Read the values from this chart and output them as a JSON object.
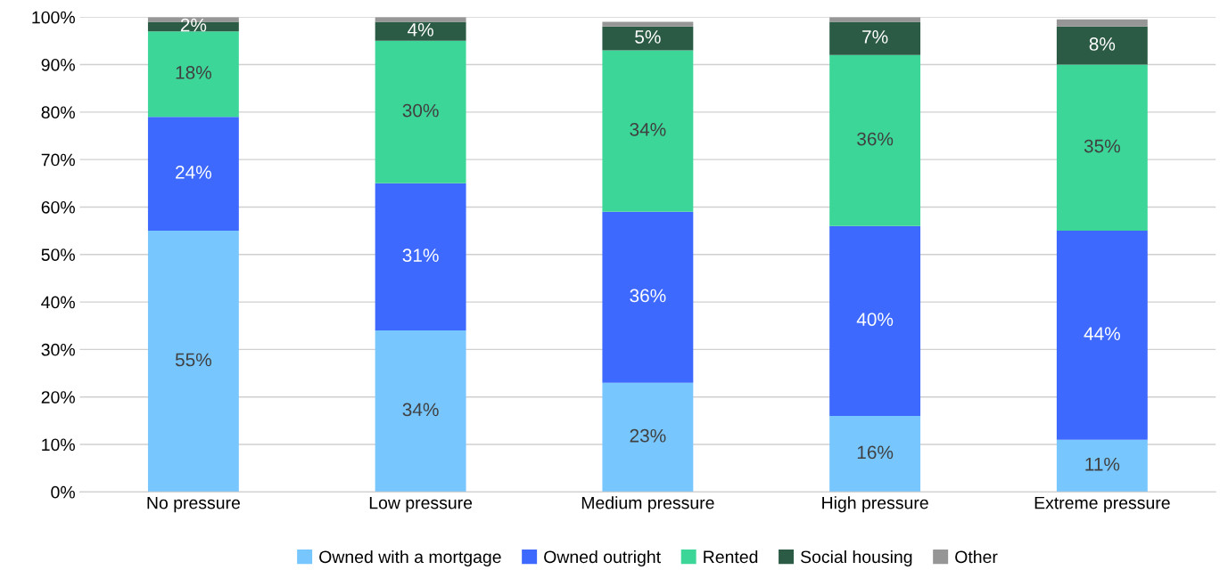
{
  "chart_data": {
    "type": "bar",
    "stacked": true,
    "categories": [
      "No pressure",
      "Low pressure",
      "Medium pressure",
      "High pressure",
      "Extreme pressure"
    ],
    "series": [
      {
        "name": "Owned with a mortgage",
        "color": "#77c6fe",
        "values": [
          55,
          34,
          23,
          16,
          11
        ],
        "value_labels": [
          "55%",
          "34%",
          "23%",
          "16%",
          "11%"
        ]
      },
      {
        "name": "Owned outright",
        "color": "#3d69fe",
        "values": [
          24,
          31,
          36,
          40,
          44
        ],
        "value_labels": [
          "24%",
          "31%",
          "36%",
          "40%",
          "44%"
        ]
      },
      {
        "name": "Rented",
        "color": "#3dd699",
        "values": [
          18,
          30,
          34,
          36,
          35
        ],
        "value_labels": [
          "18%",
          "30%",
          "34%",
          "36%",
          "35%"
        ]
      },
      {
        "name": "Social housing",
        "color": "#2c5b45",
        "values": [
          2,
          4,
          5,
          7,
          8
        ],
        "value_labels": [
          "2%",
          "4%",
          "5%",
          "7%",
          "8%"
        ]
      },
      {
        "name": "Other",
        "color": "#969696",
        "values": [
          1,
          1,
          1,
          1,
          1.5
        ]
      }
    ],
    "ylim": [
      0,
      100
    ],
    "yticks": [
      {
        "value": 0,
        "label": "0%"
      },
      {
        "value": 10,
        "label": "10%"
      },
      {
        "value": 20,
        "label": "20%"
      },
      {
        "value": 30,
        "label": "30%"
      },
      {
        "value": 40,
        "label": "40%"
      },
      {
        "value": 50,
        "label": "50%"
      },
      {
        "value": 60,
        "label": "60%"
      },
      {
        "value": 70,
        "label": "70%"
      },
      {
        "value": 80,
        "label": "80%"
      },
      {
        "value": 90,
        "label": "90%"
      },
      {
        "value": 100,
        "label": "100%"
      }
    ],
    "grid": "y",
    "legend": "bottom"
  }
}
